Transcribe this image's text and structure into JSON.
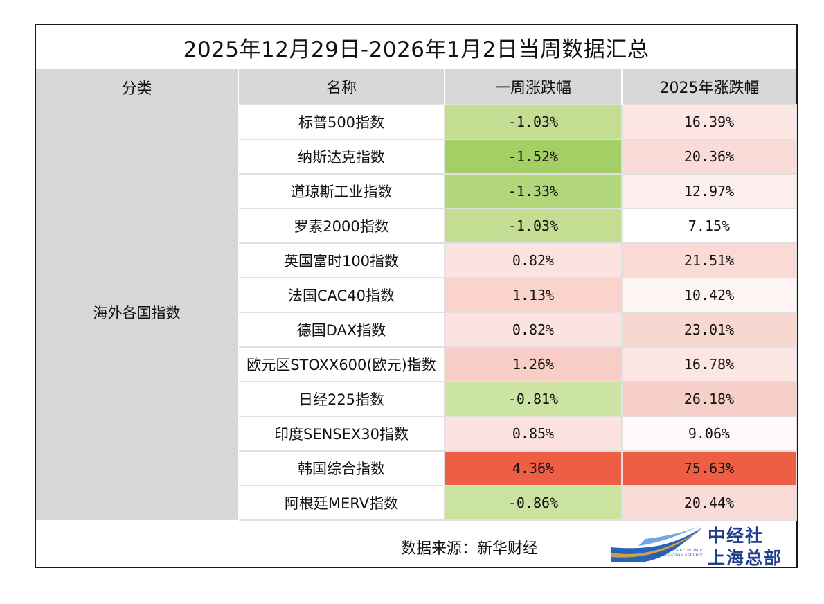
{
  "title": "2025年12月29日-2026年1月2日当周数据汇总",
  "headers": [
    "分类",
    "名称",
    "一周涨跌幅",
    "2025年涨跌幅"
  ],
  "category": "海外各国指数",
  "rows": [
    {
      "name": "标普500指数",
      "week": "-1.03%",
      "year": "16.39%",
      "week_color": "#c3de92",
      "year_color": "#fbe6e3"
    },
    {
      "name": "纳斯达克指数",
      "week": "-1.52%",
      "year": "20.36%",
      "week_color": "#a4cf64",
      "year_color": "#f9dcd7"
    },
    {
      "name": "道琼斯工业指数",
      "week": "-1.33%",
      "year": "12.97%",
      "week_color": "#b2d67a",
      "year_color": "#fcefed"
    },
    {
      "name": "罗素2000指数",
      "week": "-1.03%",
      "year": "7.15%",
      "week_color": "#c3de92",
      "year_color": "#ffffff"
    },
    {
      "name": "英国富时100指数",
      "week": "0.82%",
      "year": "21.51%",
      "week_color": "#fbe3df",
      "year_color": "#f9dad5"
    },
    {
      "name": "法国CAC40指数",
      "week": "1.13%",
      "year": "10.42%",
      "week_color": "#f9d3cc",
      "year_color": "#fef5f4"
    },
    {
      "name": "德国DAX指数",
      "week": "0.82%",
      "year": "23.01%",
      "week_color": "#fbe3df",
      "year_color": "#f8d7d1"
    },
    {
      "name": "欧元区STOXX600(欧元)指数",
      "week": "1.26%",
      "year": "16.78%",
      "week_color": "#f8cdc5",
      "year_color": "#fbe6e3"
    },
    {
      "name": "日经225指数",
      "week": "-0.81%",
      "year": "26.18%",
      "week_color": "#cde5a4",
      "year_color": "#f6cfc8"
    },
    {
      "name": "印度SENSEX30指数",
      "week": "0.85%",
      "year": "9.06%",
      "week_color": "#fbe2de",
      "year_color": "#fefaf9"
    },
    {
      "name": "韩国综合指数",
      "week": "4.36%",
      "year": "75.63%",
      "week_color": "#ee5e45",
      "year_color": "#ee5e45"
    },
    {
      "name": "阿根廷MERV指数",
      "week": "-0.86%",
      "year": "20.44%",
      "week_color": "#cae3a0",
      "year_color": "#f9dcd7"
    }
  ],
  "footer": {
    "source": "数据来源：新华财经"
  },
  "logo": {
    "line1": "中经社",
    "line2": "上海总部",
    "en1": "CHINA ECONOMIC",
    "en2": "INFORMATION SERVICE",
    "icon": "ceis-wave-logo",
    "color": "#1f3f8a"
  }
}
